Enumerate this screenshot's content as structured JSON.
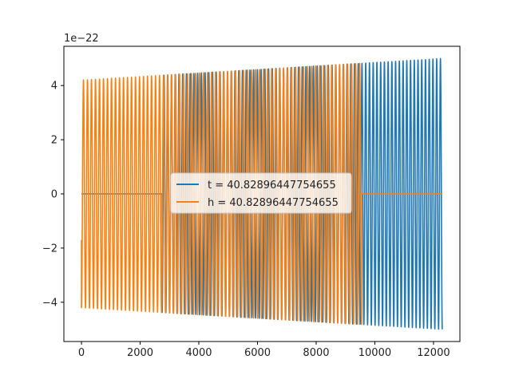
{
  "chart_data": {
    "type": "line",
    "title": "",
    "xlabel": "",
    "ylabel": "",
    "offset_text": "1e−22",
    "xlim": [
      -600,
      12900
    ],
    "ylim": [
      -5.45,
      5.45
    ],
    "y_scale": "1e-22",
    "grid": false,
    "legend_position": "center",
    "x_ticks": [
      0,
      2000,
      4000,
      6000,
      8000,
      10000,
      12000
    ],
    "x_tick_labels": [
      "0",
      "2000",
      "4000",
      "6000",
      "8000",
      "10000",
      "12000"
    ],
    "y_ticks": [
      -4,
      -2,
      0,
      2,
      4
    ],
    "y_tick_labels": [
      "−4",
      "−2",
      "0",
      "2",
      "4"
    ],
    "series": [
      {
        "name": "t = 40.82896447754655",
        "color": "#1f77b4",
        "x_range": [
          0,
          12300
        ],
        "active_range": [
          2750,
          12300
        ],
        "zero_before": 2750,
        "amplitude_start": 4.2,
        "amplitude_end": 5.0,
        "approx_cycles": 75,
        "start_value": -1.7
      },
      {
        "name": "h = 40.82896447754655",
        "color": "#ff7f0e",
        "x_range": [
          0,
          12300
        ],
        "active_range": [
          0,
          9550
        ],
        "zero_after": 9550,
        "amplitude_start": 4.2,
        "amplitude_end": 5.0,
        "approx_cycles": 70,
        "start_value": -1.7
      }
    ]
  }
}
